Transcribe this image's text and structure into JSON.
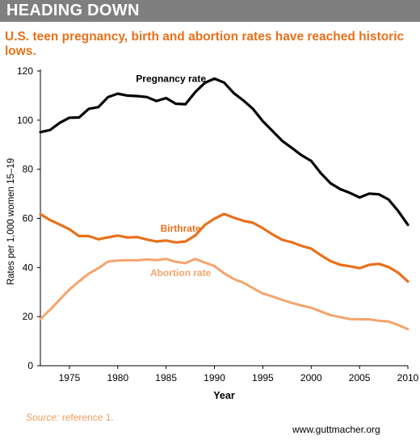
{
  "header": {
    "title": "HEADING DOWN"
  },
  "subtitle": "U.S. teen pregnancy, birth and abortion rates have reached historic lows.",
  "footer": {
    "source_label": "Source:",
    "source_text": " reference 1.",
    "credit": "www.guttmacher.org"
  },
  "colors": {
    "header_bg": "#7f7f7f",
    "accent": "#e8701a",
    "pregnancy": "#000000",
    "birth": "#e8701a",
    "abortion": "#f4a46c"
  },
  "chart_data": {
    "type": "line",
    "xlabel": "Year",
    "ylabel": "Rates per 1,000 women 15–19",
    "xlim": [
      1972,
      2010
    ],
    "ylim": [
      0,
      120
    ],
    "x_ticks": [
      1975,
      1980,
      1985,
      1990,
      1995,
      2000,
      2005,
      2010
    ],
    "y_ticks": [
      0,
      20,
      40,
      60,
      80,
      100,
      120
    ],
    "grid": false,
    "x": [
      1972,
      1973,
      1974,
      1975,
      1976,
      1977,
      1978,
      1979,
      1980,
      1981,
      1982,
      1983,
      1984,
      1985,
      1986,
      1987,
      1988,
      1989,
      1990,
      1991,
      1992,
      1993,
      1994,
      1995,
      1996,
      1997,
      1998,
      1999,
      2000,
      2001,
      2002,
      2003,
      2004,
      2005,
      2006,
      2007,
      2008,
      2009,
      2010
    ],
    "series": [
      {
        "name": "Pregnancy rate",
        "color": "#000000",
        "values": [
          95.1,
          96.0,
          98.9,
          101.0,
          101.1,
          104.6,
          105.3,
          109.4,
          110.8,
          110.0,
          109.8,
          109.4,
          107.8,
          109.0,
          106.7,
          106.5,
          111.4,
          115.2,
          116.9,
          115.3,
          111.0,
          108.0,
          104.5,
          99.6,
          95.6,
          91.6,
          88.7,
          85.7,
          83.4,
          78.4,
          74.3,
          71.9,
          70.4,
          68.5,
          70.1,
          69.8,
          67.7,
          63.0,
          57.4
        ]
      },
      {
        "name": "Birthrate",
        "color": "#e8701a",
        "values": [
          61.7,
          59.3,
          57.5,
          55.6,
          52.8,
          52.8,
          51.5,
          52.3,
          53.0,
          52.2,
          52.4,
          51.4,
          50.6,
          51.0,
          50.2,
          50.6,
          53.0,
          57.3,
          59.9,
          61.8,
          60.3,
          59.0,
          58.2,
          56.0,
          53.5,
          51.3,
          50.3,
          48.8,
          47.7,
          45.0,
          42.6,
          41.1,
          40.5,
          39.7,
          41.1,
          41.5,
          40.2,
          37.9,
          34.3
        ]
      },
      {
        "name": "Abortion rate",
        "color": "#f4a46c",
        "values": [
          19.0,
          22.8,
          26.9,
          31.0,
          34.4,
          37.5,
          39.7,
          42.4,
          42.8,
          43.0,
          42.9,
          43.3,
          43.0,
          43.5,
          42.3,
          41.8,
          43.5,
          42.0,
          40.6,
          37.6,
          35.3,
          33.8,
          31.6,
          29.4,
          28.2,
          26.8,
          25.6,
          24.5,
          23.6,
          22.1,
          20.6,
          19.8,
          19.0,
          18.9,
          18.9,
          18.3,
          18.0,
          16.6,
          14.9
        ]
      }
    ]
  }
}
